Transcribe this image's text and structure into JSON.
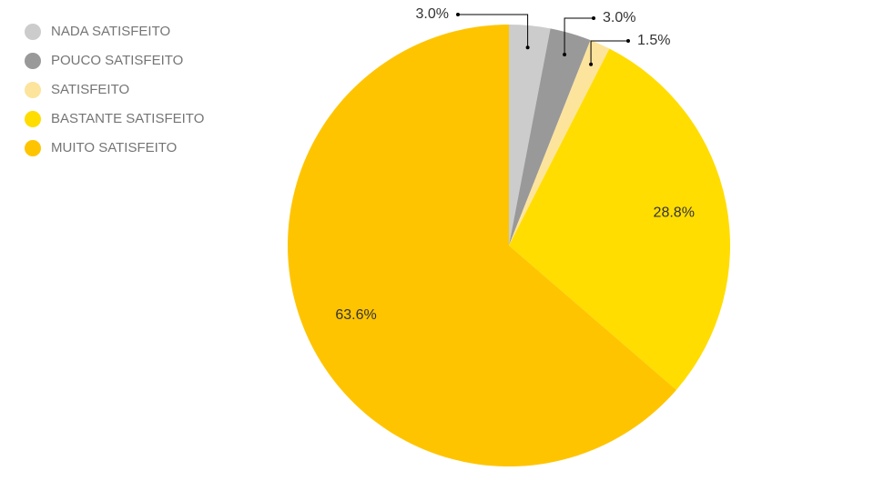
{
  "chart_data": {
    "type": "pie",
    "categories": [
      "NADA SATISFEITO",
      "POUCO SATISFEITO",
      "SATISFEITO",
      "BASTANTE SATISFEITO",
      "MUITO SATISFEITO"
    ],
    "values": [
      3,
      3,
      1.5,
      28.8,
      63.6
    ],
    "value_labels": [
      "3.0%",
      "3.0%",
      "1.5%",
      "28.8%",
      "63.6%"
    ],
    "colors": [
      "#cccccc",
      "#999999",
      "#fde49c",
      "#ffdd00",
      "#ffc400"
    ],
    "legend": "top-left"
  }
}
